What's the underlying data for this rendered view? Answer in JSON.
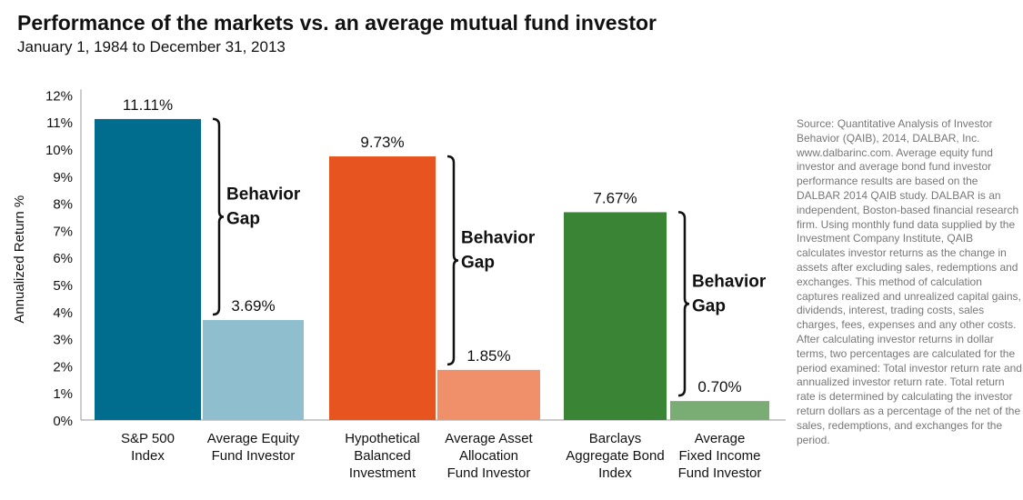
{
  "title": "Performance of the markets vs. an average mutual fund investor",
  "subtitle": "January 1, 1984 to December 31, 2013",
  "source_note": "Source: Quantitative Analysis of Investor Behavior (QAIB), 2014, DALBAR, Inc. www.dalbarinc.com. Average equity fund investor and average bond fund investor performance results are based on the DALBAR 2014 QAIB study.  DALBAR is an independent, Boston-based financial research firm. Using monthly fund data supplied by the Investment Company Institute, QAIB calculates investor returns as the change in assets after excluding sales, redemptions and exchanges. This method of calculation captures realized and unrealized capital gains, dividends, interest, trading costs, sales charges, fees, expenses and any other costs. After calculating investor returns in dollar terms, two percentages are calculated for the period examined: Total investor return rate and annualized investor return rate. Total return rate is determined by calculating the investor return dollars as a percentage of the net of the sales, redemptions, and exchanges for the period.",
  "chart_data": {
    "type": "bar",
    "title": "Performance of the markets vs. an average mutual fund investor",
    "xlabel": "",
    "ylabel": "Annualized Return %",
    "ylim": [
      0,
      12
    ],
    "yticks": [
      "0%",
      "1%",
      "2%",
      "3%",
      "4%",
      "5%",
      "6%",
      "7%",
      "8%",
      "9%",
      "10%",
      "11%",
      "12%"
    ],
    "grid": false,
    "legend": "none",
    "bars": [
      {
        "label": [
          "S&P 500",
          "Index"
        ],
        "value": 11.11,
        "value_label": "11.11%",
        "color": "#006d8f"
      },
      {
        "label": [
          "Average Equity",
          "Fund Investor"
        ],
        "value": 3.69,
        "value_label": "3.69%",
        "color": "#8fbfcf"
      },
      {
        "label": [
          "Hypothetical",
          "Balanced",
          "Investment"
        ],
        "value": 9.73,
        "value_label": "9.73%",
        "color": "#e8541f"
      },
      {
        "label": [
          "Average Asset",
          "Allocation",
          "Fund Investor"
        ],
        "value": 1.85,
        "value_label": "1.85%",
        "color": "#f0906b"
      },
      {
        "label": [
          "Barclays",
          "Aggregate Bond",
          "Index"
        ],
        "value": 7.67,
        "value_label": "7.67%",
        "color": "#3a8535"
      },
      {
        "label": [
          "Average",
          "Fixed Income",
          "Fund Investor"
        ],
        "value": 0.7,
        "value_label": "0.70%",
        "color": "#7aad73"
      }
    ],
    "annotations": [
      {
        "text": [
          "Behavior",
          "Gap"
        ],
        "from_bar": 0,
        "to_bar": 1
      },
      {
        "text": [
          "Behavior",
          "Gap"
        ],
        "from_bar": 2,
        "to_bar": 3
      },
      {
        "text": [
          "Behavior",
          "Gap"
        ],
        "from_bar": 4,
        "to_bar": 5
      }
    ]
  }
}
